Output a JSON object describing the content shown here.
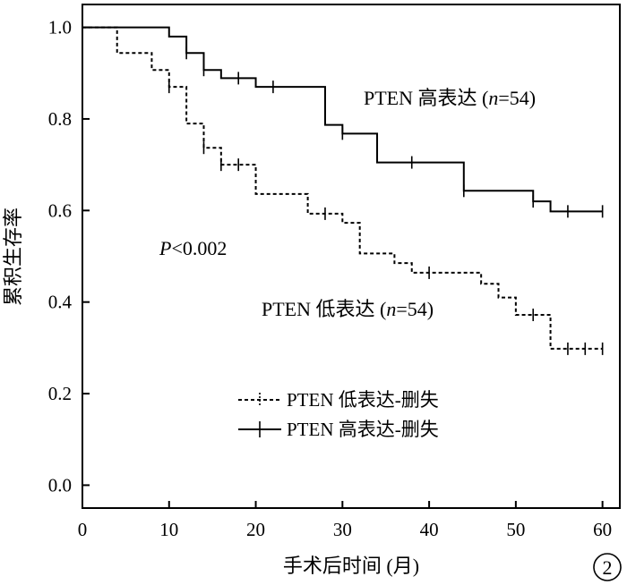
{
  "chart_data": {
    "type": "line",
    "xlabel": "手术后时间 (月)",
    "ylabel": "累积生存率",
    "xlim": [
      0,
      62
    ],
    "ylim": [
      -0.05,
      1.05
    ],
    "x_ticks": [
      0,
      10,
      20,
      30,
      40,
      50,
      60
    ],
    "y_ticks": [
      0.0,
      0.2,
      0.4,
      0.6,
      0.8,
      1.0
    ],
    "y_tick_labels": [
      "0.0",
      "0.2",
      "0.4",
      "0.6",
      "0.8",
      "1.0"
    ],
    "grid": false,
    "legend_position": "bottom-left",
    "p_value": {
      "prefix": "P",
      "text": "<0.002"
    },
    "panel_label": "2",
    "series": [
      {
        "id": "high",
        "label_parts": [
          "PTEN 高表达 (",
          "n",
          "=54)"
        ],
        "legend_label": "PTEN 高表达-删失",
        "style": "solid",
        "steps": [
          [
            0,
            1.0
          ],
          [
            10,
            0.98
          ],
          [
            12,
            0.944
          ],
          [
            14,
            0.907
          ],
          [
            16,
            0.889
          ],
          [
            20,
            0.87
          ],
          [
            28,
            0.787
          ],
          [
            30,
            0.768
          ],
          [
            34,
            0.705
          ],
          [
            44,
            0.643
          ],
          [
            52,
            0.62
          ],
          [
            54,
            0.598
          ],
          [
            60,
            0.598
          ]
        ],
        "censored": [
          [
            12,
            0.944
          ],
          [
            14,
            0.907
          ],
          [
            18,
            0.889
          ],
          [
            22,
            0.87
          ],
          [
            30,
            0.768
          ],
          [
            38,
            0.705
          ],
          [
            44,
            0.643
          ],
          [
            52,
            0.62
          ],
          [
            56,
            0.598
          ],
          [
            60,
            0.598
          ]
        ]
      },
      {
        "id": "low",
        "label_parts": [
          "PTEN 低表达 (",
          "n",
          "=54)"
        ],
        "legend_label": "PTEN 低表达-删失",
        "style": "dashed",
        "steps": [
          [
            0,
            1.0
          ],
          [
            4,
            0.944
          ],
          [
            8,
            0.907
          ],
          [
            10,
            0.87
          ],
          [
            12,
            0.79
          ],
          [
            14,
            0.737
          ],
          [
            16,
            0.7
          ],
          [
            20,
            0.636
          ],
          [
            26,
            0.593
          ],
          [
            30,
            0.573
          ],
          [
            32,
            0.506
          ],
          [
            36,
            0.485
          ],
          [
            38,
            0.464
          ],
          [
            46,
            0.44
          ],
          [
            48,
            0.41
          ],
          [
            50,
            0.372
          ],
          [
            54,
            0.298
          ],
          [
            60,
            0.298
          ]
        ],
        "censored": [
          [
            10,
            0.87
          ],
          [
            14,
            0.737
          ],
          [
            16,
            0.7
          ],
          [
            18,
            0.7
          ],
          [
            28,
            0.593
          ],
          [
            40,
            0.464
          ],
          [
            52,
            0.372
          ],
          [
            56,
            0.298
          ],
          [
            58,
            0.298
          ],
          [
            60,
            0.298
          ]
        ]
      }
    ]
  }
}
